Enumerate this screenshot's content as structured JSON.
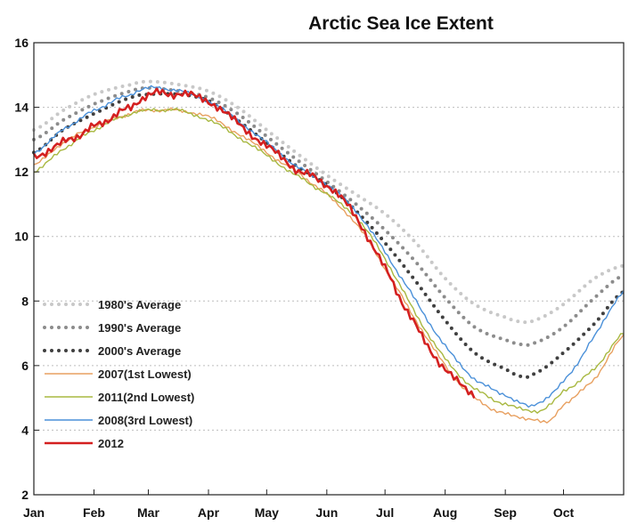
{
  "chart_data": {
    "type": "line",
    "title": "Arctic Sea Ice Extent",
    "xlabel": "",
    "ylabel": "",
    "x_ticks": [
      "Jan",
      "Feb",
      "Mar",
      "Apr",
      "May",
      "Jun",
      "Jul",
      "Aug",
      "Sep",
      "Oct"
    ],
    "x_tick_days": [
      0,
      31,
      59,
      90,
      120,
      151,
      181,
      212,
      243,
      273
    ],
    "xlim": [
      0,
      304
    ],
    "y_ticks": [
      "2",
      "4",
      "6",
      "8",
      "10",
      "12",
      "14",
      "16"
    ],
    "y_tick_values": [
      2,
      4,
      6,
      8,
      10,
      12,
      14,
      16
    ],
    "ylim": [
      2,
      16
    ],
    "grid": "horizontal dashed",
    "legend_position": "lower-left",
    "series": [
      {
        "name": "1980's Average",
        "color": "#c8c8c8",
        "style": "dotted",
        "points": [
          [
            0,
            13.3
          ],
          [
            15,
            13.9
          ],
          [
            31,
            14.4
          ],
          [
            50,
            14.7
          ],
          [
            59,
            14.8
          ],
          [
            75,
            14.7
          ],
          [
            90,
            14.5
          ],
          [
            105,
            14.0
          ],
          [
            120,
            13.3
          ],
          [
            135,
            12.6
          ],
          [
            151,
            11.9
          ],
          [
            166,
            11.3
          ],
          [
            181,
            10.7
          ],
          [
            197,
            9.8
          ],
          [
            212,
            8.7
          ],
          [
            227,
            7.9
          ],
          [
            243,
            7.5
          ],
          [
            252,
            7.35
          ],
          [
            258,
            7.4
          ],
          [
            273,
            7.9
          ],
          [
            289,
            8.7
          ],
          [
            304,
            9.1
          ]
        ]
      },
      {
        "name": "1990's Average",
        "color": "#8c8c8c",
        "style": "dotted",
        "points": [
          [
            0,
            13.0
          ],
          [
            15,
            13.6
          ],
          [
            31,
            14.1
          ],
          [
            50,
            14.5
          ],
          [
            59,
            14.6
          ],
          [
            75,
            14.5
          ],
          [
            90,
            14.3
          ],
          [
            105,
            13.8
          ],
          [
            120,
            13.1
          ],
          [
            135,
            12.4
          ],
          [
            151,
            11.7
          ],
          [
            166,
            11.0
          ],
          [
            181,
            10.2
          ],
          [
            197,
            9.2
          ],
          [
            212,
            8.1
          ],
          [
            227,
            7.2
          ],
          [
            243,
            6.8
          ],
          [
            252,
            6.65
          ],
          [
            258,
            6.7
          ],
          [
            273,
            7.2
          ],
          [
            289,
            8.1
          ],
          [
            304,
            8.8
          ]
        ]
      },
      {
        "name": "2000's Average",
        "color": "#404040",
        "style": "dotted",
        "points": [
          [
            0,
            12.6
          ],
          [
            15,
            13.3
          ],
          [
            31,
            13.8
          ],
          [
            50,
            14.3
          ],
          [
            59,
            14.4
          ],
          [
            75,
            14.4
          ],
          [
            90,
            14.2
          ],
          [
            105,
            13.6
          ],
          [
            120,
            12.9
          ],
          [
            135,
            12.2
          ],
          [
            151,
            11.6
          ],
          [
            166,
            10.8
          ],
          [
            181,
            9.8
          ],
          [
            197,
            8.6
          ],
          [
            212,
            7.4
          ],
          [
            227,
            6.4
          ],
          [
            243,
            5.9
          ],
          [
            252,
            5.65
          ],
          [
            258,
            5.75
          ],
          [
            273,
            6.4
          ],
          [
            289,
            7.3
          ],
          [
            304,
            8.3
          ]
        ]
      },
      {
        "name": "2007(1st Lowest)",
        "color": "#e8a060",
        "style": "solid",
        "points": [
          [
            0,
            12.2
          ],
          [
            15,
            12.9
          ],
          [
            31,
            13.4
          ],
          [
            50,
            13.8
          ],
          [
            59,
            13.9
          ],
          [
            75,
            13.9
          ],
          [
            90,
            13.7
          ],
          [
            105,
            13.2
          ],
          [
            120,
            12.6
          ],
          [
            135,
            12.0
          ],
          [
            151,
            11.3
          ],
          [
            166,
            10.4
          ],
          [
            181,
            9.0
          ],
          [
            197,
            7.4
          ],
          [
            212,
            6.0
          ],
          [
            227,
            5.0
          ],
          [
            243,
            4.5
          ],
          [
            258,
            4.35
          ],
          [
            266,
            4.3
          ],
          [
            273,
            4.8
          ],
          [
            289,
            5.6
          ],
          [
            304,
            6.9
          ]
        ]
      },
      {
        "name": "2011(2nd Lowest)",
        "color": "#a8b840",
        "style": "solid",
        "points": [
          [
            0,
            12.0
          ],
          [
            15,
            12.7
          ],
          [
            31,
            13.3
          ],
          [
            50,
            13.8
          ],
          [
            59,
            13.9
          ],
          [
            75,
            13.9
          ],
          [
            90,
            13.6
          ],
          [
            105,
            13.1
          ],
          [
            120,
            12.5
          ],
          [
            135,
            11.9
          ],
          [
            151,
            11.3
          ],
          [
            166,
            10.6
          ],
          [
            181,
            9.3
          ],
          [
            197,
            7.6
          ],
          [
            212,
            6.2
          ],
          [
            227,
            5.3
          ],
          [
            243,
            4.8
          ],
          [
            258,
            4.6
          ],
          [
            264,
            4.7
          ],
          [
            273,
            5.2
          ],
          [
            289,
            5.9
          ],
          [
            304,
            7.0
          ]
        ]
      },
      {
        "name": "2008(3rd Lowest)",
        "color": "#4a90d9",
        "style": "solid",
        "points": [
          [
            0,
            12.6
          ],
          [
            15,
            13.3
          ],
          [
            31,
            13.9
          ],
          [
            50,
            14.4
          ],
          [
            59,
            14.6
          ],
          [
            75,
            14.5
          ],
          [
            90,
            14.2
          ],
          [
            105,
            13.6
          ],
          [
            120,
            12.9
          ],
          [
            135,
            12.2
          ],
          [
            151,
            11.6
          ],
          [
            166,
            10.8
          ],
          [
            181,
            9.5
          ],
          [
            197,
            8.0
          ],
          [
            212,
            6.6
          ],
          [
            227,
            5.6
          ],
          [
            243,
            5.1
          ],
          [
            252,
            4.8
          ],
          [
            258,
            4.8
          ],
          [
            273,
            5.5
          ],
          [
            289,
            6.9
          ],
          [
            304,
            8.3
          ]
        ]
      },
      {
        "name": "2012",
        "color": "#d42020",
        "style": "solid",
        "points": [
          [
            0,
            12.5
          ],
          [
            15,
            12.9
          ],
          [
            31,
            13.4
          ],
          [
            50,
            14.0
          ],
          [
            59,
            14.4
          ],
          [
            75,
            14.4
          ],
          [
            90,
            14.2
          ],
          [
            105,
            13.5
          ],
          [
            120,
            12.8
          ],
          [
            135,
            12.1
          ],
          [
            151,
            11.6
          ],
          [
            166,
            10.6
          ],
          [
            181,
            9.0
          ],
          [
            197,
            7.2
          ],
          [
            212,
            5.9
          ],
          [
            227,
            5.1
          ]
        ]
      }
    ]
  }
}
